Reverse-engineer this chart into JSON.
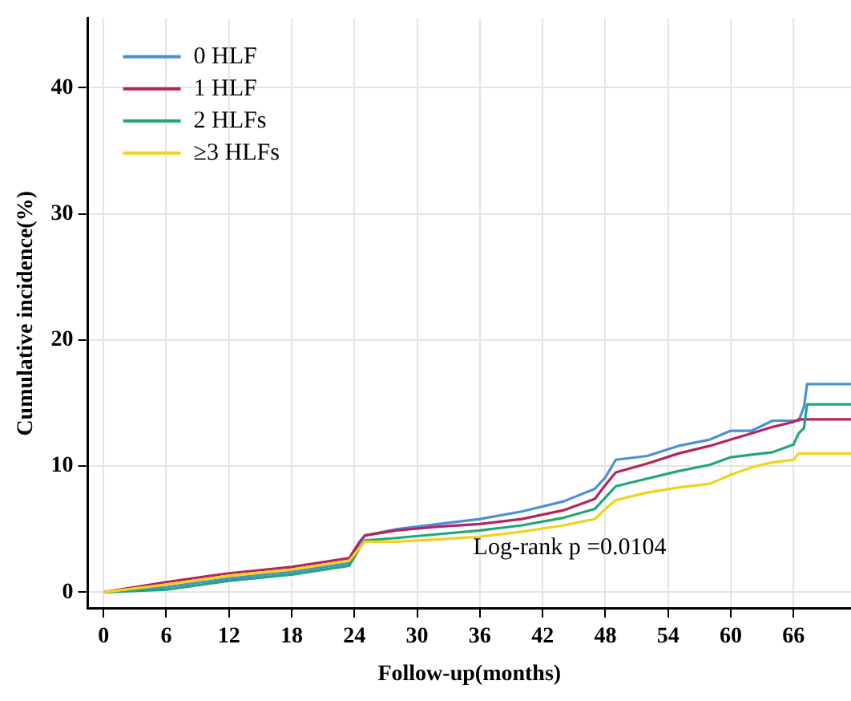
{
  "chart_data": {
    "type": "line",
    "xlabel": "Follow-up(months)",
    "ylabel": "Cumulative incidence(%)",
    "xlim": [
      -1.5,
      71.5
    ],
    "ylim": [
      -1.3,
      45.5
    ],
    "xticks": [
      0,
      6,
      12,
      18,
      24,
      30,
      36,
      42,
      48,
      54,
      60,
      66
    ],
    "yticks": [
      0,
      10,
      20,
      30,
      40
    ],
    "grid": true,
    "legend": "top left",
    "line_style": "solid",
    "marker": "none",
    "annotations": [
      "Log-rank p =0.0104"
    ],
    "x": [
      0,
      6,
      12,
      18,
      23.5,
      24.5,
      25,
      28,
      32,
      36,
      40,
      44,
      47,
      48,
      49,
      52,
      55,
      58,
      60,
      62,
      64,
      66,
      66.5,
      67,
      67.3,
      71.5
    ],
    "series": [
      {
        "name": "0 HLF",
        "color": "#4a90d9",
        "values": [
          0,
          0.4,
          1.1,
          1.6,
          2.3,
          3.9,
          4.5,
          5.0,
          5.4,
          5.8,
          6.4,
          7.2,
          8.2,
          9.1,
          10.5,
          10.8,
          11.6,
          12.1,
          12.8,
          12.8,
          13.6,
          13.6,
          13.6,
          14.7,
          16.5,
          16.5
        ]
      },
      {
        "name": "1 HLF",
        "color": "#b5245e",
        "values": [
          0,
          0.8,
          1.5,
          2.0,
          2.7,
          4.0,
          4.5,
          4.9,
          5.2,
          5.4,
          5.8,
          6.5,
          7.4,
          8.5,
          9.5,
          10.2,
          11.0,
          11.6,
          12.1,
          12.6,
          13.1,
          13.5,
          13.7,
          13.7,
          13.7,
          13.7
        ]
      },
      {
        "name": "2 HLFs",
        "color": "#20a67a",
        "values": [
          0,
          0.2,
          0.9,
          1.4,
          2.1,
          3.5,
          4.1,
          4.3,
          4.6,
          4.9,
          5.3,
          5.9,
          6.6,
          7.5,
          8.4,
          9.0,
          9.6,
          10.1,
          10.7,
          10.9,
          11.1,
          11.7,
          12.6,
          13.0,
          14.9,
          14.9
        ]
      },
      {
        "name": "≥3 HLFs",
        "color": "#f2d21b",
        "values": [
          0,
          0.6,
          1.3,
          1.8,
          2.5,
          3.5,
          4.0,
          4.0,
          4.2,
          4.4,
          4.8,
          5.3,
          5.8,
          6.6,
          7.3,
          7.9,
          8.3,
          8.6,
          9.3,
          9.9,
          10.3,
          10.5,
          11.0,
          11.0,
          11.0,
          11.0
        ]
      }
    ]
  }
}
